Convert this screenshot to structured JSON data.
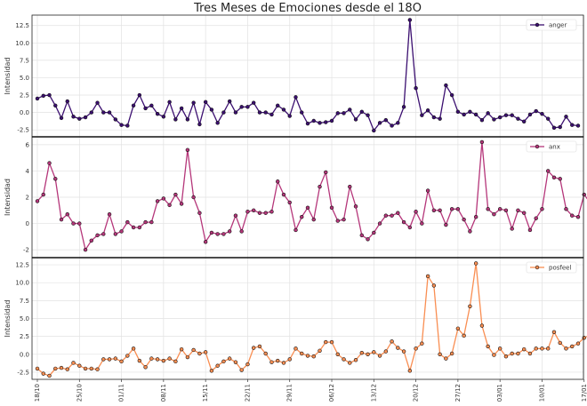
{
  "chart_data": {
    "type": "line",
    "title": "Tres Meses de Emociones desde el 18O",
    "x_tick_labels": [
      "18/10",
      "25/10",
      "01/11",
      "08/11",
      "15/11",
      "22/11",
      "29/11",
      "06/12",
      "13/12",
      "20/12",
      "27/12",
      "03/01",
      "10/01",
      "17/01"
    ],
    "x_tick_indices": [
      0,
      7,
      14,
      21,
      28,
      35,
      42,
      49,
      56,
      63,
      70,
      77,
      84,
      91
    ],
    "panels": [
      {
        "ylabel": "Intensidad",
        "ylim": [
          -3.5,
          14.0
        ],
        "yticks": [
          -2.5,
          0.0,
          2.5,
          5.0,
          7.5,
          10.0,
          12.5
        ],
        "ytick_labels": [
          "-2.5",
          "0.0",
          "2.5",
          "5.0",
          "7.5",
          "10.0",
          "12.5"
        ],
        "series": {
          "name": "anger",
          "color": "#3b0f70",
          "values": [
            2.0,
            2.4,
            2.5,
            1.0,
            -0.8,
            1.6,
            -0.6,
            -0.9,
            -0.7,
            0.0,
            1.4,
            0.0,
            0.0,
            -1.0,
            -1.8,
            -1.9,
            1.0,
            2.5,
            0.6,
            1.0,
            -0.2,
            -0.6,
            1.5,
            -1.0,
            0.6,
            -1.0,
            1.4,
            -1.7,
            1.5,
            0.4,
            -1.5,
            0.0,
            1.6,
            0.0,
            0.8,
            0.8,
            1.4,
            0.0,
            0.0,
            -0.3,
            1.0,
            0.4,
            -0.5,
            2.2,
            0.0,
            -1.6,
            -1.2,
            -1.5,
            -1.4,
            -1.2,
            -0.1,
            -0.1,
            0.4,
            -1.0,
            0.1,
            -0.4,
            -2.6,
            -1.5,
            -1.1,
            -1.9,
            -1.5,
            0.8,
            13.3,
            3.5,
            -0.4,
            0.3,
            -0.7,
            -0.9,
            3.9,
            2.5,
            0.1,
            -0.3,
            0.1,
            -0.3,
            -1.1,
            -0.1,
            -1.0,
            -0.7,
            -0.4,
            -0.4,
            -0.9,
            -1.3,
            -0.3,
            0.2,
            -0.2,
            -0.9,
            -2.2,
            -2.1,
            -0.6,
            -1.8,
            -1.9
          ]
        }
      },
      {
        "ylabel": "Intensidad",
        "ylim": [
          -2.6,
          6.6
        ],
        "yticks": [
          -2,
          0,
          2,
          4,
          6
        ],
        "ytick_labels": [
          "-2",
          "0",
          "2",
          "4",
          "6"
        ],
        "series": {
          "name": "anx",
          "color": "#b5367a",
          "values": [
            1.7,
            2.2,
            4.6,
            3.4,
            0.3,
            0.7,
            0.0,
            0.0,
            -2.0,
            -1.3,
            -0.9,
            -0.8,
            0.7,
            -0.8,
            -0.6,
            0.1,
            -0.3,
            -0.3,
            0.1,
            0.1,
            1.7,
            1.9,
            1.4,
            2.2,
            1.5,
            5.6,
            2.0,
            0.8,
            -1.4,
            -0.7,
            -0.8,
            -0.8,
            -0.6,
            0.6,
            -0.6,
            0.9,
            1.0,
            0.8,
            0.8,
            0.9,
            3.2,
            2.2,
            1.6,
            -0.5,
            0.5,
            1.2,
            0.3,
            2.8,
            3.9,
            1.2,
            0.2,
            0.3,
            2.8,
            1.3,
            -0.9,
            -1.2,
            -0.7,
            0.0,
            0.6,
            0.6,
            0.8,
            0.1,
            -0.3,
            0.9,
            0.0,
            2.5,
            1.0,
            1.0,
            -0.1,
            1.1,
            1.1,
            0.3,
            -0.6,
            0.5,
            6.2,
            1.1,
            0.7,
            1.1,
            1.0,
            -0.4,
            1.0,
            0.8,
            -0.5,
            0.4,
            1.1,
            4.0,
            3.5,
            3.4,
            1.1,
            0.6,
            0.5,
            2.2,
            1.6
          ]
        }
      },
      {
        "ylabel": "Intensidad",
        "ylim": [
          -3.5,
          13.5
        ],
        "yticks": [
          -2.5,
          0.0,
          2.5,
          5.0,
          7.5,
          10.0,
          12.5
        ],
        "ytick_labels": [
          "-2.5",
          "0.0",
          "2.5",
          "5.0",
          "7.5",
          "10.0",
          "12.5"
        ],
        "series": {
          "name": "posfeel",
          "color": "#f98e52",
          "values": [
            -2.0,
            -2.7,
            -3.0,
            -2.0,
            -1.9,
            -2.1,
            -1.2,
            -1.6,
            -2.0,
            -2.0,
            -2.1,
            -0.7,
            -0.7,
            -0.6,
            -1.0,
            -0.2,
            0.8,
            -0.9,
            -1.8,
            -0.6,
            -0.7,
            -0.9,
            -0.6,
            -1.0,
            0.7,
            -0.4,
            0.6,
            0.1,
            0.3,
            -2.3,
            -1.6,
            -1.0,
            -0.6,
            -1.1,
            -2.2,
            -1.4,
            0.9,
            1.1,
            0.1,
            -1.1,
            -0.9,
            -1.2,
            -0.7,
            0.8,
            0.1,
            -0.2,
            -0.3,
            0.5,
            1.7,
            1.7,
            0.0,
            -0.7,
            -1.2,
            -0.8,
            0.2,
            0.0,
            0.3,
            -0.2,
            0.4,
            1.8,
            0.9,
            0.4,
            -2.3,
            0.8,
            1.5,
            10.9,
            9.6,
            0.0,
            -0.6,
            0.1,
            3.6,
            2.6,
            6.7,
            12.7,
            4.0,
            1.1,
            -0.1,
            0.8,
            -0.3,
            0.1,
            0.1,
            0.7,
            0.1,
            0.8,
            0.8,
            0.8,
            3.1,
            1.6,
            0.8,
            1.1,
            1.5,
            2.3,
            2.7
          ]
        }
      }
    ]
  }
}
